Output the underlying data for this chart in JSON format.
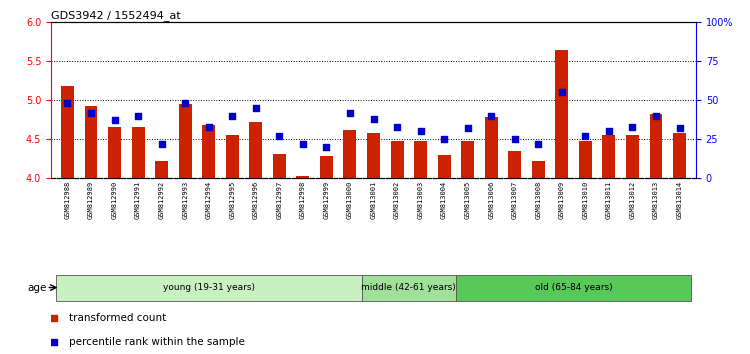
{
  "title": "GDS3942 / 1552494_at",
  "samples": [
    "GSM812988",
    "GSM812989",
    "GSM812990",
    "GSM812991",
    "GSM812992",
    "GSM812993",
    "GSM812994",
    "GSM812995",
    "GSM812996",
    "GSM812997",
    "GSM812998",
    "GSM812999",
    "GSM813000",
    "GSM813001",
    "GSM813002",
    "GSM813003",
    "GSM813004",
    "GSM813005",
    "GSM813006",
    "GSM813007",
    "GSM813008",
    "GSM813009",
    "GSM813010",
    "GSM813011",
    "GSM813012",
    "GSM813013",
    "GSM813014"
  ],
  "transformed_count": [
    5.18,
    4.93,
    4.65,
    4.65,
    4.22,
    4.95,
    4.68,
    4.55,
    4.72,
    4.31,
    4.03,
    4.28,
    4.62,
    4.58,
    4.48,
    4.48,
    4.3,
    4.48,
    4.78,
    4.35,
    4.22,
    5.65,
    4.48,
    4.55,
    4.55,
    4.82,
    4.58
  ],
  "percentile_rank": [
    48,
    42,
    37,
    40,
    22,
    48,
    33,
    40,
    45,
    27,
    22,
    20,
    42,
    38,
    33,
    30,
    25,
    32,
    40,
    25,
    22,
    55,
    27,
    30,
    33,
    40,
    32
  ],
  "groups": [
    {
      "label": "young (19-31 years)",
      "start": 0,
      "end": 13,
      "color": "#c8f0c0"
    },
    {
      "label": "middle (42-61 years)",
      "start": 13,
      "end": 17,
      "color": "#a0e098"
    },
    {
      "label": "old (65-84 years)",
      "start": 17,
      "end": 27,
      "color": "#58c858"
    }
  ],
  "ylim_left": [
    4.0,
    6.0
  ],
  "ylim_right": [
    0,
    100
  ],
  "yticks_left": [
    4.0,
    4.5,
    5.0,
    5.5,
    6.0
  ],
  "yticks_right": [
    0,
    25,
    50,
    75,
    100
  ],
  "ytick_labels_right": [
    "0",
    "25",
    "50",
    "75",
    "100%"
  ],
  "bar_color": "#cc2200",
  "dot_color": "#0000cc",
  "bar_width": 0.55,
  "baseline": 4.0,
  "dot_size": 18,
  "legend_items": [
    "transformed count",
    "percentile rank within the sample"
  ],
  "legend_colors": [
    "#cc2200",
    "#0000cc"
  ],
  "age_label": "age",
  "tick_bg_color": "#cccccc",
  "group_border_color": "#555555"
}
